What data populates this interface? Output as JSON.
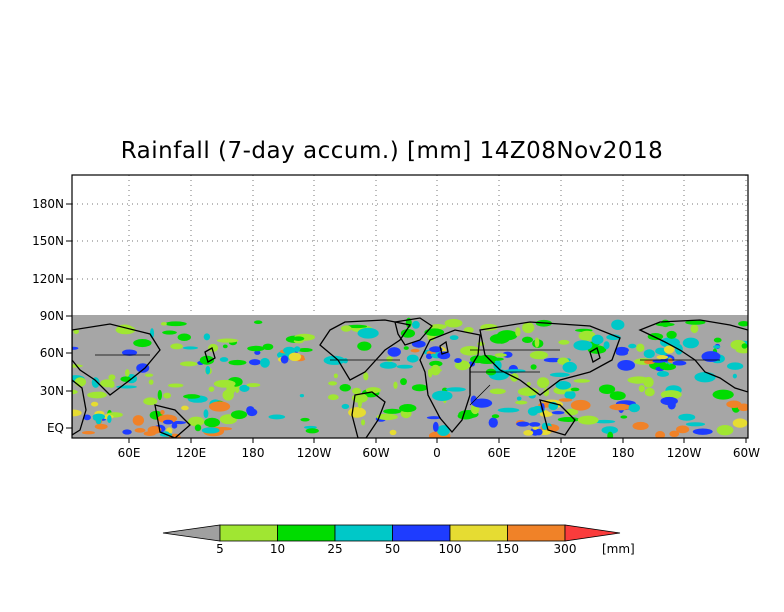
{
  "title": "Rainfall (7-day accum.) [mm] 14Z08Nov2018",
  "map": {
    "lat_ticks": [
      "EQ",
      "30N",
      "60N",
      "90N",
      "120N",
      "150N",
      "180N"
    ],
    "lon_ticks": [
      "60E",
      "120E",
      "180",
      "120W",
      "60W",
      "0",
      "60E",
      "120E",
      "180",
      "120W",
      "60W"
    ],
    "grid": "dotted",
    "no_data_color": "#a6a6a6",
    "land_outline_color": "#000000"
  },
  "colorbar": {
    "unit": "[mm]",
    "thresholds": [
      "5",
      "10",
      "25",
      "50",
      "100",
      "150",
      "300"
    ],
    "colors": {
      "below": "#a0a0a0",
      "5-10": "#a0e632",
      "10-25": "#00dc00",
      "25-50": "#00c8c8",
      "50-100": "#1e3cff",
      "100-150": "#e6dc32",
      "150-300": "#f08228",
      "above": "#fa3c3c"
    }
  }
}
